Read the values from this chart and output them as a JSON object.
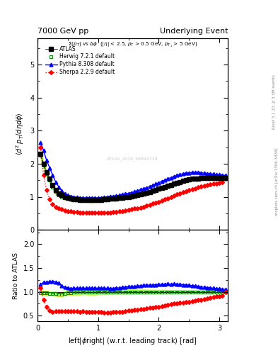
{
  "title_left": "7000 GeV pp",
  "title_right": "Underlying Event",
  "subtitle": "Σ(p_{T}) vs Δφ  (|η| < 2.5, p_{T} > 0.5 GeV, p_{T1} > 5 GeV)",
  "ylabel_main": "⟨d² p_T/dηdφ⟩",
  "ylabel_ratio": "Ratio to ATLAS",
  "xlabel": "left|φright| (w.r.t. leading track) [rad]",
  "right_label1": "mcplots.cern.ch [arXiv:1306.3436]",
  "right_label2": "Rivet 3.1.10, ≥ 3.5M events",
  "watermark": "ATLAS_2010_S8894728",
  "legend": [
    "ATLAS",
    "Herwig 7.2.1 default",
    "Pythia 8.308 default",
    "Sherpa 2.2.9 default"
  ],
  "xlim": [
    0,
    3.14159
  ],
  "ylim_main": [
    0,
    5.8
  ],
  "ylim_ratio": [
    0.38,
    2.3
  ],
  "atlas_color": "#000000",
  "herwig_color": "#008800",
  "pythia_color": "#0000ff",
  "sherpa_color": "#ff0000",
  "herwig_band_color": "#ccff44",
  "atlas_x": [
    0.05,
    0.1,
    0.15,
    0.2,
    0.25,
    0.3,
    0.35,
    0.4,
    0.45,
    0.5,
    0.55,
    0.6,
    0.65,
    0.7,
    0.75,
    0.8,
    0.85,
    0.9,
    0.95,
    1.0,
    1.05,
    1.1,
    1.15,
    1.2,
    1.25,
    1.3,
    1.35,
    1.4,
    1.45,
    1.5,
    1.55,
    1.6,
    1.65,
    1.7,
    1.75,
    1.8,
    1.85,
    1.9,
    1.95,
    2.0,
    2.05,
    2.1,
    2.15,
    2.2,
    2.25,
    2.3,
    2.35,
    2.4,
    2.45,
    2.5,
    2.55,
    2.6,
    2.65,
    2.7,
    2.75,
    2.8,
    2.85,
    2.9,
    2.95,
    3.0,
    3.05,
    3.1
  ],
  "atlas_y": [
    2.3,
    2.0,
    1.75,
    1.55,
    1.35,
    1.2,
    1.1,
    1.05,
    1.0,
    0.97,
    0.95,
    0.93,
    0.92,
    0.91,
    0.9,
    0.9,
    0.9,
    0.9,
    0.9,
    0.9,
    0.91,
    0.92,
    0.93,
    0.94,
    0.95,
    0.96,
    0.97,
    0.98,
    0.99,
    1.0,
    1.02,
    1.04,
    1.06,
    1.08,
    1.1,
    1.12,
    1.15,
    1.18,
    1.21,
    1.24,
    1.27,
    1.3,
    1.33,
    1.36,
    1.39,
    1.42,
    1.45,
    1.48,
    1.5,
    1.52,
    1.54,
    1.55,
    1.56,
    1.57,
    1.57,
    1.57,
    1.57,
    1.57,
    1.57,
    1.57,
    1.57,
    1.57
  ],
  "herwig_x": [
    0.05,
    0.1,
    0.15,
    0.2,
    0.25,
    0.3,
    0.35,
    0.4,
    0.45,
    0.5,
    0.55,
    0.6,
    0.65,
    0.7,
    0.75,
    0.8,
    0.85,
    0.9,
    0.95,
    1.0,
    1.05,
    1.1,
    1.15,
    1.2,
    1.25,
    1.3,
    1.35,
    1.4,
    1.45,
    1.5,
    1.55,
    1.6,
    1.65,
    1.7,
    1.75,
    1.8,
    1.85,
    1.9,
    1.95,
    2.0,
    2.05,
    2.1,
    2.15,
    2.2,
    2.25,
    2.3,
    2.35,
    2.4,
    2.45,
    2.5,
    2.55,
    2.6,
    2.65,
    2.7,
    2.75,
    2.8,
    2.85,
    2.9,
    2.95,
    3.0,
    3.05,
    3.1
  ],
  "herwig_y": [
    2.25,
    1.95,
    1.7,
    1.5,
    1.3,
    1.15,
    1.05,
    1.0,
    0.97,
    0.95,
    0.93,
    0.92,
    0.91,
    0.9,
    0.9,
    0.89,
    0.89,
    0.89,
    0.89,
    0.9,
    0.91,
    0.92,
    0.93,
    0.94,
    0.95,
    0.96,
    0.97,
    0.98,
    0.99,
    1.0,
    1.02,
    1.04,
    1.06,
    1.08,
    1.1,
    1.12,
    1.15,
    1.18,
    1.21,
    1.24,
    1.27,
    1.3,
    1.33,
    1.36,
    1.39,
    1.42,
    1.45,
    1.48,
    1.5,
    1.52,
    1.54,
    1.55,
    1.56,
    1.57,
    1.57,
    1.57,
    1.57,
    1.57,
    1.57,
    1.57,
    1.57,
    1.57
  ],
  "herwig_y_lo": [
    2.15,
    1.85,
    1.62,
    1.43,
    1.24,
    1.09,
    1.0,
    0.95,
    0.92,
    0.9,
    0.88,
    0.87,
    0.86,
    0.85,
    0.85,
    0.85,
    0.84,
    0.84,
    0.84,
    0.85,
    0.86,
    0.87,
    0.88,
    0.89,
    0.9,
    0.91,
    0.92,
    0.93,
    0.94,
    0.95,
    0.97,
    0.99,
    1.01,
    1.03,
    1.05,
    1.07,
    1.1,
    1.13,
    1.16,
    1.19,
    1.22,
    1.25,
    1.28,
    1.31,
    1.34,
    1.37,
    1.4,
    1.43,
    1.45,
    1.47,
    1.49,
    1.5,
    1.51,
    1.52,
    1.52,
    1.52,
    1.52,
    1.52,
    1.52,
    1.52,
    1.52,
    1.52
  ],
  "herwig_y_hi": [
    2.35,
    2.05,
    1.78,
    1.57,
    1.36,
    1.21,
    1.1,
    1.05,
    1.02,
    1.0,
    0.98,
    0.97,
    0.96,
    0.95,
    0.95,
    0.93,
    0.93,
    0.93,
    0.94,
    0.95,
    0.96,
    0.97,
    0.98,
    0.99,
    1.0,
    1.01,
    1.02,
    1.03,
    1.04,
    1.05,
    1.07,
    1.09,
    1.11,
    1.13,
    1.15,
    1.17,
    1.2,
    1.23,
    1.26,
    1.29,
    1.32,
    1.35,
    1.38,
    1.41,
    1.44,
    1.47,
    1.5,
    1.53,
    1.55,
    1.57,
    1.59,
    1.6,
    1.61,
    1.62,
    1.62,
    1.62,
    1.62,
    1.62,
    1.62,
    1.62,
    1.62,
    1.62
  ],
  "pythia_x": [
    0.05,
    0.1,
    0.15,
    0.2,
    0.25,
    0.3,
    0.35,
    0.4,
    0.45,
    0.5,
    0.55,
    0.6,
    0.65,
    0.7,
    0.75,
    0.8,
    0.85,
    0.9,
    0.95,
    1.0,
    1.05,
    1.1,
    1.15,
    1.2,
    1.25,
    1.3,
    1.35,
    1.4,
    1.45,
    1.5,
    1.55,
    1.6,
    1.65,
    1.7,
    1.75,
    1.8,
    1.85,
    1.9,
    1.95,
    2.0,
    2.05,
    2.1,
    2.15,
    2.2,
    2.25,
    2.3,
    2.35,
    2.4,
    2.45,
    2.5,
    2.55,
    2.6,
    2.65,
    2.7,
    2.75,
    2.8,
    2.85,
    2.9,
    2.95,
    3.0,
    3.05,
    3.1
  ],
  "pythia_y": [
    2.65,
    2.4,
    2.1,
    1.88,
    1.65,
    1.45,
    1.3,
    1.18,
    1.1,
    1.05,
    1.02,
    1.0,
    0.99,
    0.98,
    0.97,
    0.97,
    0.97,
    0.97,
    0.97,
    0.97,
    0.98,
    0.99,
    1.0,
    1.01,
    1.02,
    1.04,
    1.05,
    1.07,
    1.09,
    1.11,
    1.13,
    1.16,
    1.19,
    1.22,
    1.25,
    1.28,
    1.31,
    1.35,
    1.39,
    1.43,
    1.47,
    1.51,
    1.55,
    1.58,
    1.62,
    1.65,
    1.68,
    1.7,
    1.72,
    1.73,
    1.74,
    1.74,
    1.74,
    1.73,
    1.72,
    1.71,
    1.7,
    1.69,
    1.68,
    1.67,
    1.66,
    1.65
  ],
  "sherpa_x": [
    0.05,
    0.1,
    0.15,
    0.2,
    0.25,
    0.3,
    0.35,
    0.4,
    0.45,
    0.5,
    0.55,
    0.6,
    0.65,
    0.7,
    0.75,
    0.8,
    0.85,
    0.9,
    0.95,
    1.0,
    1.05,
    1.1,
    1.15,
    1.2,
    1.25,
    1.3,
    1.35,
    1.4,
    1.45,
    1.5,
    1.55,
    1.6,
    1.65,
    1.7,
    1.75,
    1.8,
    1.85,
    1.9,
    1.95,
    2.0,
    2.05,
    2.1,
    2.15,
    2.2,
    2.25,
    2.3,
    2.35,
    2.4,
    2.45,
    2.5,
    2.55,
    2.6,
    2.65,
    2.7,
    2.75,
    2.8,
    2.85,
    2.9,
    2.95,
    3.0,
    3.05,
    3.1
  ],
  "sherpa_y": [
    2.5,
    1.65,
    1.2,
    0.93,
    0.78,
    0.7,
    0.65,
    0.62,
    0.59,
    0.57,
    0.56,
    0.55,
    0.54,
    0.53,
    0.53,
    0.52,
    0.52,
    0.52,
    0.52,
    0.52,
    0.52,
    0.52,
    0.52,
    0.53,
    0.54,
    0.55,
    0.56,
    0.57,
    0.58,
    0.6,
    0.62,
    0.64,
    0.66,
    0.68,
    0.7,
    0.73,
    0.76,
    0.79,
    0.82,
    0.85,
    0.88,
    0.92,
    0.96,
    1.0,
    1.04,
    1.08,
    1.11,
    1.14,
    1.17,
    1.2,
    1.23,
    1.26,
    1.29,
    1.31,
    1.33,
    1.35,
    1.37,
    1.39,
    1.41,
    1.43,
    1.45,
    1.55
  ]
}
